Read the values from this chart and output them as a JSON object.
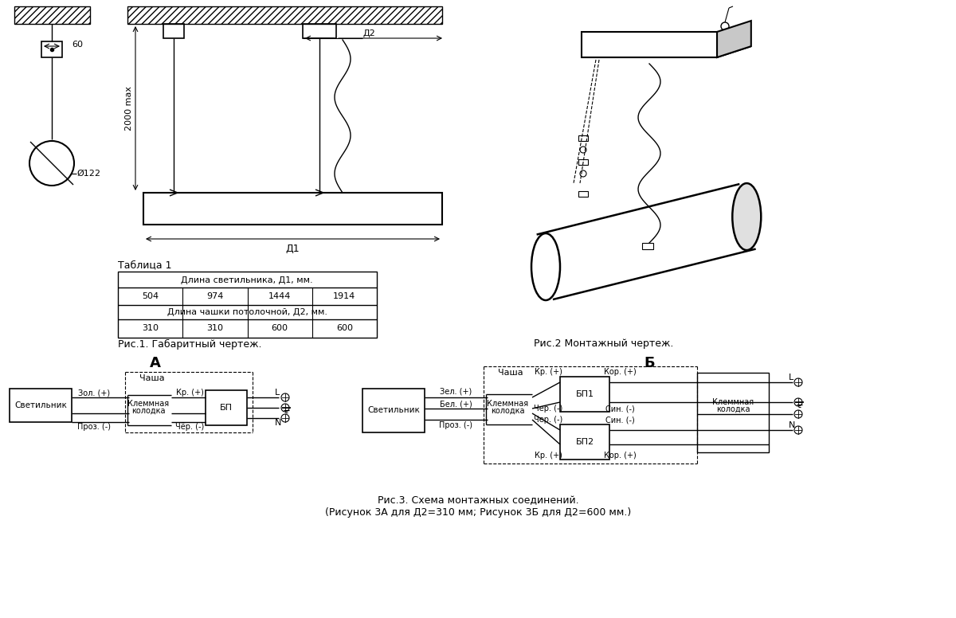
{
  "bg_color": "#ffffff",
  "line_color": "#000000",
  "fig1_caption": "Рис.1. Габаритный чертеж.",
  "fig2_caption": "Рис.2 Монтажный чертеж.",
  "fig3_caption": "Рис.3. Схема монтажных соединений.\n(Рисунок 3А для Д2=310 мм; Рисунок 3Б для Д2=600 мм.)",
  "table_title": "Таблица 1",
  "table_header1": "Длина светильника, Д1, мм.",
  "table_row1": [
    "504",
    "974",
    "1444",
    "1914"
  ],
  "table_header2": "Длина чашки потолочной, Д2, мм.",
  "table_row2": [
    "310",
    "310",
    "600",
    "600"
  ],
  "label_A": "А",
  "label_B": "Б",
  "dim_60": "60",
  "dim_122": "Ø122",
  "dim_2000": "2000 max",
  "dim_D1": "Д1",
  "dim_D2": "Д2"
}
